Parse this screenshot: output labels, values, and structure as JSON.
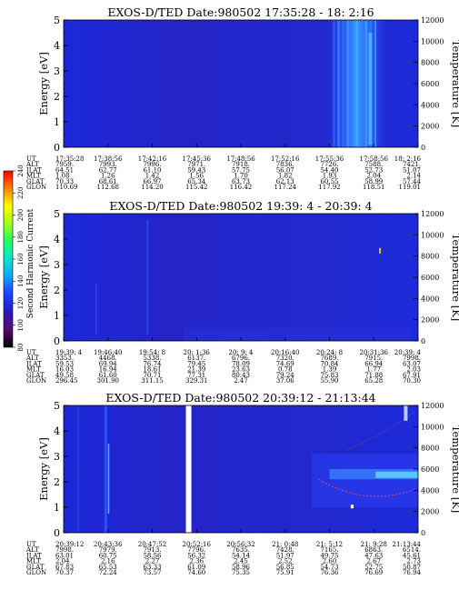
{
  "colorbar": {
    "title": "Second Harmonic Current",
    "ticks": [
      "80",
      "100",
      "120",
      "140",
      "160",
      "180",
      "200",
      "220",
      "240"
    ],
    "stops": [
      "#000000",
      "#5a0a6e",
      "#2a1ab8",
      "#1a40ff",
      "#12a0ff",
      "#10e0d0",
      "#20ff60",
      "#a0ff20",
      "#ffff00",
      "#ff8000",
      "#ff0000"
    ]
  },
  "chart_data": [
    {
      "type": "heatmap",
      "title": "EXOS-D/TED    Date:980502  17:35:28 - 18: 2:16",
      "ylabel": "Energy [eV]",
      "ylabel2": "Temperature [K]",
      "ylim": [
        0,
        5
      ],
      "yticks": [
        "0",
        "1",
        "2",
        "3",
        "4",
        "5"
      ],
      "y2lim": [
        0,
        12000
      ],
      "y2ticks": [
        "0",
        "2000",
        "4000",
        "6000",
        "8000",
        "10000",
        "12000"
      ],
      "background_color": "#2424c8",
      "rows": [
        {
          "label": "UT",
          "values": [
            "17:35:28",
            "17:38:56",
            "17:42:16",
            "17:45:36",
            "17:48:56",
            "17:52:16",
            "17:55:36",
            "17:58:56",
            "18: 2:16"
          ]
        },
        {
          "label": "ALT",
          "values": [
            "7959.",
            "7993.",
            "7996.",
            "7971.",
            "7918.",
            "7836.",
            "7726.",
            "7588.",
            "7421."
          ]
        },
        {
          "label": "ILAT",
          "values": [
            "64.51",
            "62.77",
            "61.10",
            "59.43",
            "57.75",
            "56.07",
            "54.40",
            "52.73",
            "51.07"
          ]
        },
        {
          "label": "MLT",
          "values": [
            "1.08",
            "1.26",
            "1.42",
            "1.56",
            "1.70",
            "1.82",
            "1.93",
            "2.04",
            "2.14"
          ]
        },
        {
          "label": "GLAT",
          "values": [
            "70.33",
            "68.61",
            "66.97",
            "65.34",
            "63.73",
            "62.13",
            "60.55",
            "58.99",
            "57.44"
          ]
        },
        {
          "label": "GLON",
          "values": [
            "110.69",
            "112.68",
            "114.20",
            "115.42",
            "116.42",
            "117.24",
            "117.92",
            "118.51",
            "119.01"
          ]
        }
      ]
    },
    {
      "type": "heatmap",
      "title": "EXOS-D/TED    Date:980502  19:39: 4 - 20:39: 4",
      "ylabel": "Energy [eV]",
      "ylabel2": "Temperature [K]",
      "ylim": [
        0,
        5
      ],
      "yticks": [
        "0",
        "1",
        "2",
        "3",
        "4",
        "5"
      ],
      "y2lim": [
        0,
        12000
      ],
      "y2ticks": [
        "0",
        "2000",
        "4000",
        "6000",
        "8000",
        "10000",
        "12000"
      ],
      "background_color": "#2424c8",
      "rows": [
        {
          "label": "UT",
          "values": [
            "19:39: 4",
            "19:46:40",
            "19:54: 8",
            "20: 1:36",
            "20: 9: 4",
            "20:16:40",
            "20:24: 8",
            "20:31:36",
            "20:39: 4"
          ]
        },
        {
          "label": "ALT",
          "values": [
            "3353.",
            "4468.",
            "5338.",
            "6137.",
            "6796.",
            "7320.",
            "7689.",
            "7915.",
            "7998."
          ]
        },
        {
          "label": "ILAT",
          "values": [
            "59.53",
            "69.94",
            "76.74",
            "79.45",
            "78.09",
            "74.69",
            "70.84",
            "66.94",
            "63.07"
          ]
        },
        {
          "label": "MLT",
          "values": [
            "16.03",
            "16.94",
            "18.61",
            "21.39",
            "23.63",
            "0.78",
            "1.39",
            "1.77",
            "2.03"
          ]
        },
        {
          "label": "GLAT",
          "values": [
            "49.58",
            "61.60",
            "70.71",
            "77.31",
            "80.43",
            "79.24",
            "75.83",
            "71.88",
            "67.91"
          ]
        },
        {
          "label": "GLON",
          "values": [
            "296.45",
            "301.90",
            "311.15",
            "329.31",
            "2.47",
            "37.06",
            "55.90",
            "65.28",
            "70.30"
          ]
        }
      ]
    },
    {
      "type": "heatmap",
      "title": "EXOS-D/TED    Date:980502  20:39:12 - 21:13:44",
      "ylabel": "Energy [eV]",
      "ylabel2": "Temperature [K]",
      "ylim": [
        0,
        5
      ],
      "yticks": [
        "0",
        "1",
        "2",
        "3",
        "4",
        "5"
      ],
      "y2lim": [
        0,
        12000
      ],
      "y2ticks": [
        "0",
        "2000",
        "4000",
        "6000",
        "8000",
        "10000",
        "12000"
      ],
      "background_color": "#2424c8",
      "rows": [
        {
          "label": "UT",
          "values": [
            "20:39:12",
            "20:43:36",
            "20:47:52",
            "20:52:16",
            "20:56:32",
            "21: 0:48",
            "21: 5:12",
            "21: 9:28",
            "21:13:44"
          ]
        },
        {
          "label": "ALT",
          "values": [
            "7998.",
            "7979.",
            "7913.",
            "7796.",
            "7635.",
            "7428.",
            "7165.",
            "6863.",
            "6514."
          ]
        },
        {
          "label": "ILAT",
          "values": [
            "63.01",
            "60.75",
            "58.56",
            "56.32",
            "54.14",
            "51.97",
            "49.75",
            "47.63",
            "45.61"
          ]
        },
        {
          "label": "MLT",
          "values": [
            "2.04",
            "2.16",
            "2.27",
            "2.36",
            "2.45",
            "2.52",
            "2.60",
            "2.67",
            "2.73"
          ]
        },
        {
          "label": "GLAT",
          "values": [
            "67.83",
            "65.53",
            "63.33",
            "61.09",
            "58.96",
            "56.85",
            "54.73",
            "52.75",
            "50.87"
          ]
        },
        {
          "label": "GLON",
          "values": [
            "70.37",
            "72.24",
            "73.57",
            "74.60",
            "75.35",
            "75.91",
            "76.36",
            "76.69",
            "76.94"
          ]
        }
      ]
    }
  ]
}
